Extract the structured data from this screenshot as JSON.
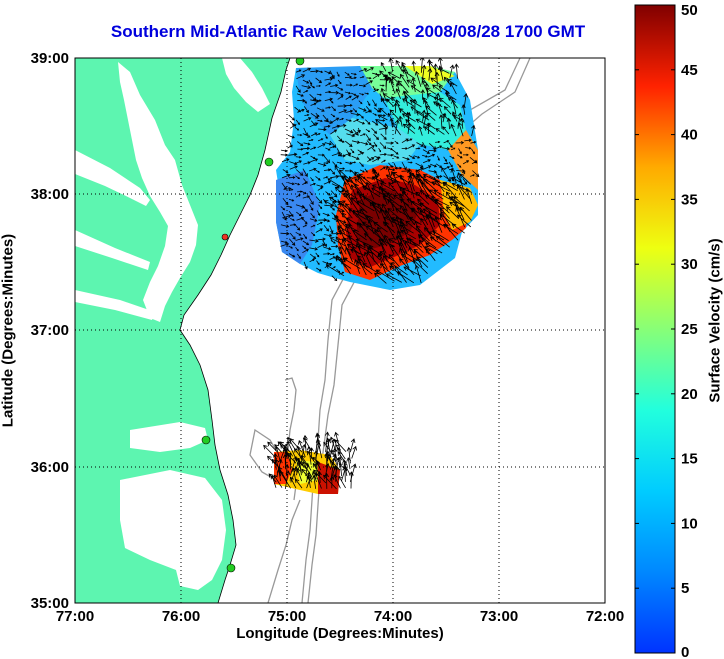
{
  "map": {
    "title": "Southern Mid-Atlantic Raw Velocities 2008/08/28 1700 GMT",
    "xlabel": "Longitude (Degrees:Minutes)",
    "ylabel": "Latitude (Degrees:Minutes)",
    "x_ticks": [
      "77:00",
      "76:00",
      "75:00",
      "74:00",
      "73:00",
      "72:00"
    ],
    "y_ticks": [
      "39:00",
      "38:00",
      "37:00",
      "36:00",
      "35:00"
    ],
    "lon_range": [
      -77,
      -72
    ],
    "lat_range": [
      35,
      39
    ],
    "colors": {
      "land": "#5df5b0",
      "ocean": "#ffffff",
      "title": "#0000dd",
      "station": "#22cc22",
      "station_alt": "#ee3322"
    }
  },
  "colorbar": {
    "label": "Surface Velocity (cm/s)",
    "ticks": [
      "0",
      "5",
      "10",
      "15",
      "20",
      "25",
      "30",
      "35",
      "40",
      "45",
      "50"
    ],
    "range": [
      0,
      50
    ],
    "colormap": "jet"
  }
}
